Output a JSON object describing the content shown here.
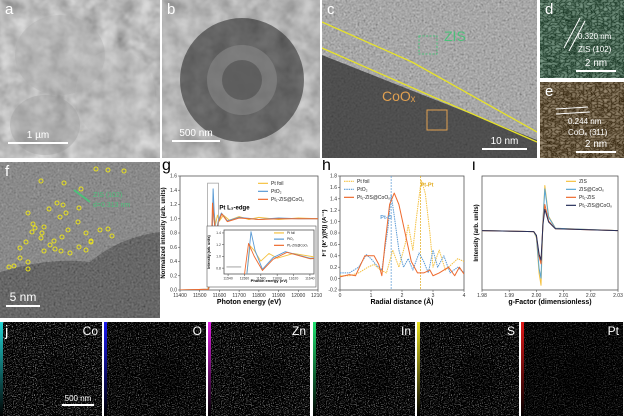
{
  "panels": {
    "a": {
      "letter": "a",
      "scale": "1 µm"
    },
    "b": {
      "letter": "b",
      "scale": "500 nm"
    },
    "c": {
      "letter": "c",
      "scale": "10 nm",
      "label_zis": "ZIS",
      "label_coox": "CoOₓ"
    },
    "d": {
      "letter": "d",
      "spacing": "0.320 nm",
      "plane": "ZIS (102)",
      "scale": "2 nm"
    },
    "e": {
      "letter": "e",
      "spacing": "0.244 nm",
      "plane": "CoOₓ (311)",
      "scale": "2 nm"
    },
    "f": {
      "letter": "f",
      "plane": "ZIS (102)",
      "spacing": "d=0.313 nm",
      "scale": "5 nm"
    },
    "g": {
      "letter": "g"
    },
    "h": {
      "letter": "h"
    },
    "i": {
      "letter": "i"
    },
    "j": {
      "letter": "j",
      "scale": "500 nm",
      "elements": [
        "Co",
        "O",
        "Zn",
        "In",
        "S",
        "Pt"
      ]
    }
  },
  "colors": {
    "pt_foil": "#f5c242",
    "pto2": "#5b9bd5",
    "pt1": "#ee6a2e",
    "pt1_coox": "#27305a",
    "zis_coox": "#5aa6d2",
    "map_colors": [
      "#22d3d3",
      "#1a1af0",
      "#e020e0",
      "#20e070",
      "#e8e020",
      "#e01818"
    ]
  },
  "chart_data": [
    {
      "type": "line",
      "panel": "g",
      "xlabel": "Photon energy (eV)",
      "ylabel": "Normalized intensity (arb. units)",
      "xlim": [
        11400,
        12100
      ],
      "ylim": [
        0,
        1.6
      ],
      "xticks": [
        11400,
        11500,
        11600,
        11700,
        11800,
        11900,
        12000,
        12100
      ],
      "yticks": [
        0.0,
        0.2,
        0.4,
        0.6,
        0.8,
        1.0,
        1.2,
        1.4,
        1.6
      ],
      "annotation": "Pt L₃-edge",
      "legend": "top-right",
      "series": [
        {
          "name": "Pt foil",
          "color": "#f5c242",
          "points": [
            [
              11400,
              0
            ],
            [
              11540,
              0.01
            ],
            [
              11555,
              0.1
            ],
            [
              11562,
              0.6
            ],
            [
              11567,
              1.18
            ],
            [
              11572,
              1.1
            ],
            [
              11580,
              0.92
            ],
            [
              11590,
              1.05
            ],
            [
              11600,
              0.97
            ],
            [
              11620,
              1.05
            ],
            [
              11650,
              0.98
            ],
            [
              11700,
              1.03
            ],
            [
              11750,
              0.99
            ],
            [
              11800,
              1.02
            ],
            [
              11900,
              0.99
            ],
            [
              12000,
              1.01
            ],
            [
              12100,
              1.0
            ]
          ]
        },
        {
          "name": "PtO₂",
          "color": "#5b9bd5",
          "points": [
            [
              11400,
              0
            ],
            [
              11545,
              0.01
            ],
            [
              11558,
              0.15
            ],
            [
              11563,
              0.7
            ],
            [
              11568,
              1.42
            ],
            [
              11573,
              1.1
            ],
            [
              11582,
              0.78
            ],
            [
              11595,
              0.98
            ],
            [
              11610,
              1.08
            ],
            [
              11640,
              0.97
            ],
            [
              11700,
              1.02
            ],
            [
              11800,
              0.99
            ],
            [
              11900,
              1.01
            ],
            [
              12000,
              1.0
            ],
            [
              12100,
              1.0
            ]
          ]
        },
        {
          "name": "Pt₁-ZIS@CoOₓ",
          "color": "#ee6a2e",
          "points": [
            [
              11400,
              0
            ],
            [
              11545,
              0.01
            ],
            [
              11556,
              0.2
            ],
            [
              11561,
              0.8
            ],
            [
              11565,
              1.22
            ],
            [
              11572,
              1.0
            ],
            [
              11582,
              0.76
            ],
            [
              11595,
              0.95
            ],
            [
              11612,
              1.07
            ],
            [
              11640,
              0.96
            ],
            [
              11700,
              1.01
            ],
            [
              11800,
              0.99
            ],
            [
              11900,
              1.0
            ],
            [
              12000,
              1.0
            ],
            [
              12100,
              1.0
            ]
          ]
        }
      ],
      "inset": {
        "xlabel": "Photon energy (eV)",
        "ylabel": "Intensity (arb. units)",
        "xlim": [
          11535,
          11645
        ],
        "ylim": [
          0.7,
          1.45
        ],
        "xticks": [
          11540,
          11560,
          11580,
          11600,
          11620,
          11640
        ],
        "yticks": [
          0.8,
          1.0,
          1.2,
          1.4
        ]
      }
    },
    {
      "type": "line",
      "panel": "h",
      "xlabel": "Radial distance (Å)",
      "ylabel": "FT (k² χ(R)) (Å⁻³)",
      "xlim": [
        0,
        4
      ],
      "ylim": [
        -0.2,
        1.8
      ],
      "xticks": [
        0,
        1,
        2,
        3,
        4
      ],
      "yticks": [
        -0.2,
        0.0,
        0.2,
        0.4,
        0.6,
        0.8,
        1.0,
        1.2,
        1.4,
        1.6,
        1.8
      ],
      "annotations": [
        {
          "text": "Pt-Pt",
          "x": 2.6,
          "y": 1.62,
          "color": "#e0a818"
        },
        {
          "text": "Pt-O",
          "x": 1.3,
          "y": 1.05,
          "color": "#5b9bd5"
        }
      ],
      "reference_lines": [
        {
          "x": 1.65,
          "color": "#5b9bd5"
        },
        {
          "x": 2.6,
          "color": "#e0a818"
        }
      ],
      "legend": "top-left",
      "series": [
        {
          "name": "Pt foil",
          "color": "#f5c242",
          "dashed": true,
          "points": [
            [
              0,
              0.05
            ],
            [
              0.3,
              0.05
            ],
            [
              0.6,
              0.1
            ],
            [
              0.9,
              0.2
            ],
            [
              1.1,
              0.25
            ],
            [
              1.3,
              0.15
            ],
            [
              1.5,
              0.1
            ],
            [
              1.7,
              0.5
            ],
            [
              1.9,
              0.2
            ],
            [
              2.1,
              0.6
            ],
            [
              2.2,
              0.95
            ],
            [
              2.35,
              0.5
            ],
            [
              2.45,
              1.0
            ],
            [
              2.62,
              1.73
            ],
            [
              2.75,
              1.5
            ],
            [
              2.9,
              0.8
            ],
            [
              3.0,
              0.2
            ],
            [
              3.2,
              0.5
            ],
            [
              3.4,
              0.15
            ],
            [
              3.6,
              0.25
            ],
            [
              3.8,
              0.35
            ],
            [
              4,
              0.3
            ]
          ]
        },
        {
          "name": "PtO₂",
          "color": "#5b9bd5",
          "dashed": true,
          "points": [
            [
              0,
              0.1
            ],
            [
              0.3,
              0.1
            ],
            [
              0.6,
              0.2
            ],
            [
              0.85,
              0.42
            ],
            [
              1.0,
              0.35
            ],
            [
              1.15,
              0.25
            ],
            [
              1.35,
              0.15
            ],
            [
              1.55,
              0.9
            ],
            [
              1.65,
              1.47
            ],
            [
              1.75,
              1.1
            ],
            [
              1.9,
              0.5
            ],
            [
              2.05,
              0.2
            ],
            [
              2.2,
              0.35
            ],
            [
              2.35,
              0.15
            ],
            [
              2.55,
              0.45
            ],
            [
              2.7,
              0.3
            ],
            [
              2.85,
              0.1
            ],
            [
              3.0,
              0.5
            ],
            [
              3.15,
              0.2
            ],
            [
              3.35,
              0.4
            ],
            [
              3.55,
              0.1
            ],
            [
              3.8,
              0.2
            ],
            [
              4,
              0.1
            ]
          ]
        },
        {
          "name": "Pt₁-ZIS@CoOₓ",
          "color": "#ee6a2e",
          "dashed": false,
          "points": [
            [
              0,
              0.03
            ],
            [
              0.3,
              0.07
            ],
            [
              0.5,
              0.05
            ],
            [
              0.8,
              0.4
            ],
            [
              1.1,
              0.4
            ],
            [
              1.25,
              0.25
            ],
            [
              1.35,
              0.05
            ],
            [
              1.45,
              0.6
            ],
            [
              1.6,
              1.3
            ],
            [
              1.75,
              1.5
            ],
            [
              1.9,
              1.3
            ],
            [
              2.1,
              0.8
            ],
            [
              2.3,
              0.3
            ],
            [
              2.5,
              0.1
            ],
            [
              2.7,
              0.1
            ],
            [
              2.9,
              0.15
            ],
            [
              3.0,
              0.05
            ],
            [
              3.2,
              0.1
            ],
            [
              3.5,
              0.2
            ],
            [
              3.7,
              0.05
            ],
            [
              3.85,
              0.2
            ],
            [
              4,
              0.08
            ]
          ]
        }
      ]
    },
    {
      "type": "line",
      "panel": "i",
      "xlabel": "g-Factor (dimensionless)",
      "ylabel": "Intensity (arb. units)",
      "xlim": [
        1.98,
        2.03
      ],
      "ylim": [
        -1.25,
        1.15
      ],
      "xticks": [
        1.98,
        1.99,
        2.0,
        2.01,
        2.02,
        2.03
      ],
      "yticks": [],
      "legend": "top-right",
      "series": [
        {
          "name": "ZIS",
          "color": "#f5c242",
          "points": [
            [
              1.98,
              0
            ],
            [
              1.999,
              -0.02
            ],
            [
              2.0,
              -0.15
            ],
            [
              2.001,
              -0.9
            ],
            [
              2.0017,
              -1.15
            ],
            [
              2.0024,
              0.2
            ],
            [
              2.0031,
              0.95
            ],
            [
              2.0045,
              0.3
            ],
            [
              2.007,
              0.05
            ],
            [
              2.03,
              0
            ]
          ]
        },
        {
          "name": "ZIS@CoOₓ",
          "color": "#5aa6d2",
          "points": [
            [
              1.98,
              0
            ],
            [
              1.999,
              -0.02
            ],
            [
              2.0,
              -0.13
            ],
            [
              2.001,
              -0.8
            ],
            [
              2.0017,
              -1.0
            ],
            [
              2.0024,
              0.2
            ],
            [
              2.0031,
              0.88
            ],
            [
              2.0045,
              0.28
            ],
            [
              2.007,
              0.05
            ],
            [
              2.03,
              0
            ]
          ]
        },
        {
          "name": "Pt₁-ZIS",
          "color": "#ee6a2e",
          "points": [
            [
              1.98,
              0
            ],
            [
              1.999,
              -0.02
            ],
            [
              2.0,
              -0.1
            ],
            [
              2.001,
              -0.55
            ],
            [
              2.0017,
              -0.7
            ],
            [
              2.0024,
              0.15
            ],
            [
              2.0031,
              0.55
            ],
            [
              2.0045,
              0.2
            ],
            [
              2.007,
              0.04
            ],
            [
              2.03,
              0
            ]
          ]
        },
        {
          "name": "Pt₁-ZIS@CoOₓ",
          "color": "#27305a",
          "points": [
            [
              1.98,
              0
            ],
            [
              1.999,
              -0.02
            ],
            [
              2.0,
              -0.1
            ],
            [
              2.001,
              -0.5
            ],
            [
              2.0017,
              -0.62
            ],
            [
              2.0024,
              0.12
            ],
            [
              2.0031,
              0.45
            ],
            [
              2.0045,
              0.18
            ],
            [
              2.007,
              0.04
            ],
            [
              2.03,
              0
            ]
          ]
        }
      ]
    }
  ]
}
